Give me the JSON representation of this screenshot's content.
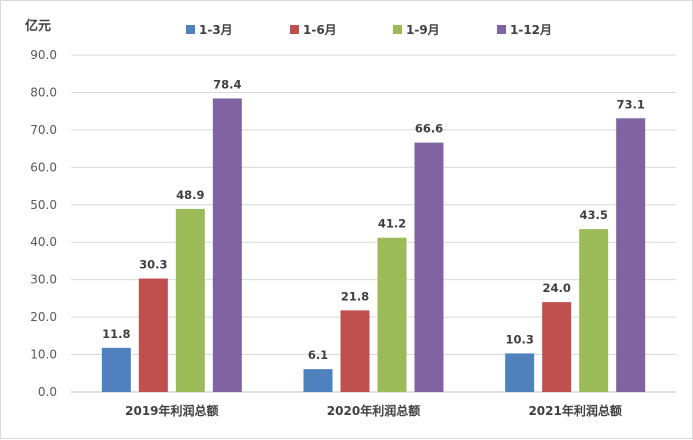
{
  "chart_data": {
    "type": "bar",
    "ylabel": "亿元",
    "ylim": [
      0,
      90
    ],
    "ytick_step": 10,
    "ytick_labels": [
      "0.0",
      "10.0",
      "20.0",
      "30.0",
      "40.0",
      "50.0",
      "60.0",
      "70.0",
      "80.0",
      "90.0"
    ],
    "grid": true,
    "legend_position": "top",
    "categories": [
      "2019年利润总额",
      "2020年利润总额",
      "2021年利润总额"
    ],
    "series": [
      {
        "name": "1-3月",
        "color": "#4f81bd",
        "values": [
          11.8,
          6.1,
          10.3
        ],
        "labels": [
          "11.8",
          "6.1",
          "10.3"
        ]
      },
      {
        "name": "1-6月",
        "color": "#c0504d",
        "values": [
          30.3,
          21.8,
          24.0
        ],
        "labels": [
          "30.3",
          "21.8",
          "24.0"
        ]
      },
      {
        "name": "1-9月",
        "color": "#9bbb59",
        "values": [
          48.9,
          41.2,
          43.5
        ],
        "labels": [
          "48.9",
          "41.2",
          "43.5"
        ]
      },
      {
        "name": "1-12月",
        "color": "#8064a2",
        "values": [
          78.4,
          66.6,
          73.1
        ],
        "labels": [
          "78.4",
          "66.6",
          "73.1"
        ]
      }
    ]
  }
}
